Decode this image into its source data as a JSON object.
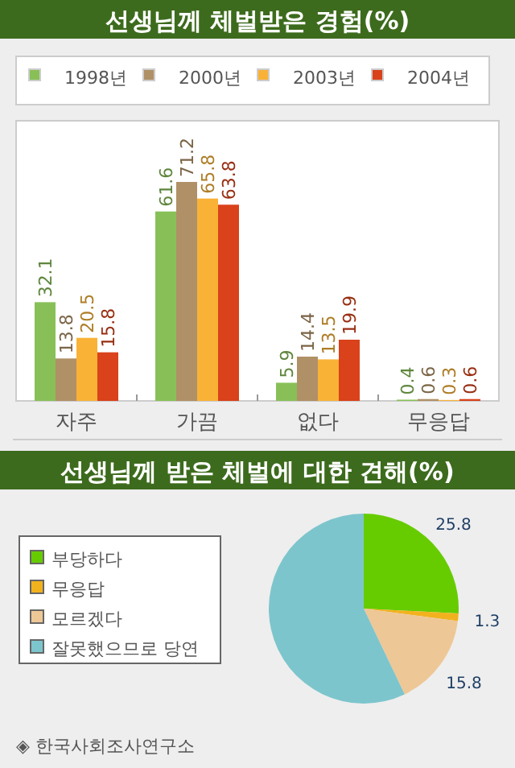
{
  "chart_data": [
    {
      "type": "bar",
      "title": "선생님께 체벌받은 경험(%)",
      "categories": [
        "자주",
        "가끔",
        "없다",
        "무응답"
      ],
      "series": [
        {
          "name": "1998년",
          "color": "#88c057",
          "values": [
            32.1,
            61.6,
            5.9,
            0.4
          ]
        },
        {
          "name": "2000년",
          "color": "#b09066",
          "values": [
            13.8,
            71.2,
            14.4,
            0.6
          ]
        },
        {
          "name": "2003년",
          "color": "#f9b236",
          "values": [
            20.5,
            65.8,
            13.5,
            0.3
          ]
        },
        {
          "name": "2004년",
          "color": "#d9421a",
          "values": [
            15.8,
            63.8,
            19.9,
            0.6
          ]
        }
      ],
      "data_labels": true,
      "legend": "top"
    },
    {
      "type": "pie",
      "title": "선생님께 받은 체벌에 대한 견해(%)",
      "categories": [
        "부당하다",
        "무응답",
        "모르겠다",
        "잘못했으므로 당연"
      ],
      "values": [
        25.8,
        1.3,
        15.8,
        57.1
      ],
      "colors": [
        "#66cc00",
        "#f2b21e",
        "#eec796",
        "#7dc5cd"
      ],
      "value_labels": [
        "25.8",
        "1.3",
        "15.8",
        null
      ],
      "legend": "left",
      "annotations": [
        "◈ 한국사회조사연구소"
      ]
    }
  ]
}
